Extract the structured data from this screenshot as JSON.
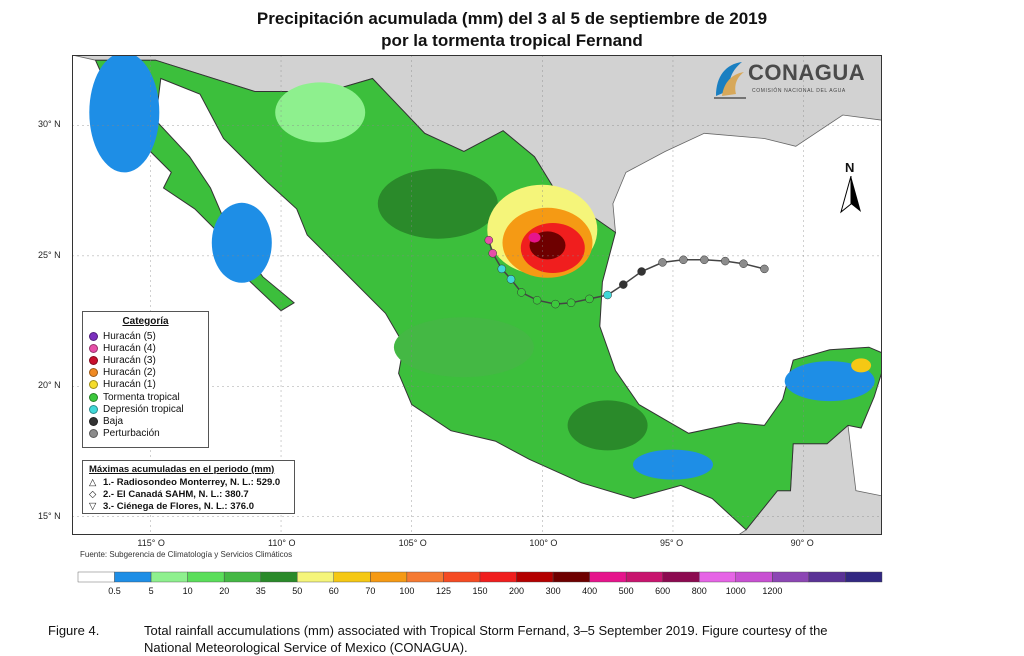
{
  "title": {
    "line1": "Precipitación acumulada (mm) del 3 al 5 de septiembre de 2019",
    "line2": "por la tormenta tropical Fernand"
  },
  "logo": {
    "name": "CONAGUA",
    "subtitle": "COMISIÓN NACIONAL DEL AGUA"
  },
  "north_label": "N",
  "axes": {
    "lat_ticks": [
      {
        "label": "30° N",
        "lat": 30
      },
      {
        "label": "25° N",
        "lat": 25
      },
      {
        "label": "20° N",
        "lat": 20
      },
      {
        "label": "15° N",
        "lat": 15
      }
    ],
    "lon_ticks": [
      {
        "label": "115° O",
        "lon": -115
      },
      {
        "label": "110° O",
        "lon": -110
      },
      {
        "label": "105° O",
        "lon": -105
      },
      {
        "label": "100° O",
        "lon": -100
      },
      {
        "label": "95° O",
        "lon": -95
      },
      {
        "label": "90° O",
        "lon": -90
      }
    ],
    "lon_range": [
      -118.0,
      -87.0
    ],
    "lat_range": [
      14.3,
      32.7
    ]
  },
  "legend": {
    "title": "Categoría",
    "items": [
      {
        "label": "Huracán (5)",
        "color": "#7b2fbe"
      },
      {
        "label": "Huracán (4)",
        "color": "#e64fa8"
      },
      {
        "label": "Huracán (3)",
        "color": "#c8102e"
      },
      {
        "label": "Huracán (2)",
        "color": "#f08a24"
      },
      {
        "label": "Huracán (1)",
        "color": "#f5dc2a"
      },
      {
        "label": "Tormenta tropical",
        "color": "#3cc83c"
      },
      {
        "label": "Depresión tropical",
        "color": "#40d8d8"
      },
      {
        "label": "Baja",
        "color": "#333333"
      },
      {
        "label": "Perturbación",
        "color": "#8c8c8c"
      }
    ]
  },
  "maxima": {
    "title": "Máximas acumuladas en el periodo (mm)",
    "items": [
      {
        "symbol": "△",
        "text": "1.- Radiosondeo Monterrey, N. L.: 529.0"
      },
      {
        "symbol": "◇",
        "text": "2.- El Canadá SAHM, N. L.: 380.7"
      },
      {
        "symbol": "▽",
        "text": "3.- Ciénega de Flores, N. L.: 376.0"
      }
    ]
  },
  "source": "Fuente: Subgerencia de Climatología y Servicios Climáticos",
  "colorbar": {
    "colors": [
      "#ffffff",
      "#1e8ee6",
      "#8ef08e",
      "#5ade5a",
      "#44b844",
      "#2a8a2a",
      "#f5f57a",
      "#f5c814",
      "#f59a14",
      "#f57a32",
      "#f54b23",
      "#f01e1e",
      "#b40000",
      "#6e0000",
      "#e6148c",
      "#c8146e",
      "#8c0a50",
      "#e664e6",
      "#c850d2",
      "#8c46b4",
      "#5a3296",
      "#322882"
    ],
    "labels": [
      "0.5",
      "5",
      "10",
      "20",
      "35",
      "50",
      "60",
      "70",
      "100",
      "125",
      "150",
      "200",
      "300",
      "400",
      "500",
      "600",
      "800",
      "1000",
      "1200"
    ]
  },
  "track": {
    "points": [
      {
        "lon": -91.5,
        "lat": 24.5,
        "cat": "Perturbación"
      },
      {
        "lon": -92.3,
        "lat": 24.7,
        "cat": "Perturbación"
      },
      {
        "lon": -93.0,
        "lat": 24.8,
        "cat": "Perturbación"
      },
      {
        "lon": -93.8,
        "lat": 24.85,
        "cat": "Perturbación"
      },
      {
        "lon": -94.6,
        "lat": 24.85,
        "cat": "Perturbación"
      },
      {
        "lon": -95.4,
        "lat": 24.75,
        "cat": "Perturbación"
      },
      {
        "lon": -96.2,
        "lat": 24.4,
        "cat": "Baja"
      },
      {
        "lon": -96.9,
        "lat": 23.9,
        "cat": "Baja"
      },
      {
        "lon": -97.5,
        "lat": 23.5,
        "cat": "Depresión tropical"
      },
      {
        "lon": -98.2,
        "lat": 23.35,
        "cat": "Tormenta tropical"
      },
      {
        "lon": -98.9,
        "lat": 23.2,
        "cat": "Tormenta tropical"
      },
      {
        "lon": -99.5,
        "lat": 23.15,
        "cat": "Tormenta tropical"
      },
      {
        "lon": -100.2,
        "lat": 23.3,
        "cat": "Tormenta tropical"
      },
      {
        "lon": -100.8,
        "lat": 23.6,
        "cat": "Tormenta tropical"
      },
      {
        "lon": -101.2,
        "lat": 24.1,
        "cat": "Depresión tropical"
      },
      {
        "lon": -101.55,
        "lat": 24.5,
        "cat": "Depresión tropical"
      },
      {
        "lon": -101.9,
        "lat": 25.1,
        "cat": "Huracán (4)"
      },
      {
        "lon": -102.05,
        "lat": 25.6,
        "cat": "Huracán (4)"
      }
    ]
  },
  "caption": {
    "figure": "Figure 4.",
    "line1": "Total rainfall accumulations (mm) associated with Tropical Storm Fernand, 3–5 September 2019.  Figure courtesy of the",
    "line2": "National Meteorological Service of Mexico (CONAGUA)."
  }
}
